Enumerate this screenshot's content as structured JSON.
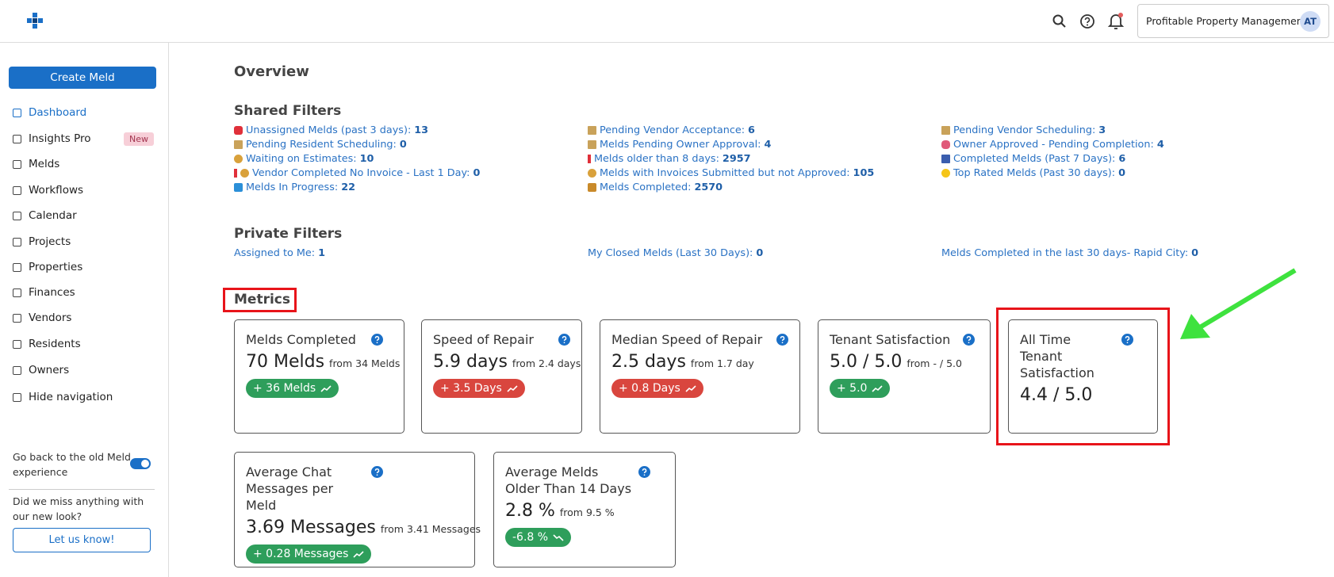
{
  "header": {
    "organization": "Profitable Property Management",
    "avatar": "AT"
  },
  "sidebar": {
    "create_button": "Create Meld",
    "nav": [
      {
        "label": "Dashboard"
      },
      {
        "label": "Insights Pro",
        "badge": "New"
      },
      {
        "label": "Melds"
      },
      {
        "label": "Workflows"
      },
      {
        "label": "Calendar"
      },
      {
        "label": "Projects"
      },
      {
        "label": "Properties"
      },
      {
        "label": "Finances"
      },
      {
        "label": "Vendors"
      },
      {
        "label": "Residents"
      },
      {
        "label": "Owners"
      },
      {
        "label": "Hide navigation"
      }
    ],
    "toggle_label": "Go back to the old Meld experience",
    "feedback_text": "Did we miss anything with our new look?",
    "feedback_button": "Let us know!"
  },
  "main": {
    "title": "Overview",
    "shared_filters": {
      "title": "Shared Filters",
      "columns": [
        [
          {
            "label": "Unassigned Melds (past 3 days):",
            "count": 13
          },
          {
            "label": "Pending Resident Scheduling:",
            "count": 0
          },
          {
            "label": "Waiting on Estimates:",
            "count": 10
          },
          {
            "label": "Vendor Completed No Invoice - Last 1 Day:",
            "count": 0
          },
          {
            "label": "Melds In Progress:",
            "count": 22
          }
        ],
        [
          {
            "label": "Pending Vendor Acceptance:",
            "count": 6
          },
          {
            "label": "Melds Pending Owner Approval:",
            "count": 4
          },
          {
            "label": "Melds older than 8 days:",
            "count": 2957
          },
          {
            "label": "Melds with Invoices Submitted but not Approved:",
            "count": 105
          },
          {
            "label": "Melds Completed:",
            "count": 2570
          }
        ],
        [
          {
            "label": "Pending Vendor Scheduling:",
            "count": 3
          },
          {
            "label": "Owner Approved - Pending Completion:",
            "count": 4
          },
          {
            "label": "Completed Melds (Past 7 Days):",
            "count": 6
          },
          {
            "label": "Top Rated Melds (Past 30 days):",
            "count": 0
          }
        ]
      ]
    },
    "private_filters": {
      "title": "Private Filters",
      "items": [
        {
          "label": "Assigned to Me:",
          "count": 1
        },
        {
          "label": "My Closed Melds (Last 30 Days):",
          "count": 0
        },
        {
          "label": "Melds Completed in the last 30 days- Rapid City:",
          "count": 0
        }
      ]
    },
    "metrics": {
      "title": "Metrics",
      "cards": [
        {
          "title": "Melds Completed",
          "value": "70 Melds",
          "from": "from 34 Melds",
          "change": "+ 36 Melds",
          "color": "#2e9e5b"
        },
        {
          "title": "Speed of Repair",
          "value": "5.9 days",
          "from": "from 2.4 days",
          "change": "+ 3.5 Days",
          "color": "#d9463e"
        },
        {
          "title": "Median Speed of Repair",
          "value": "2.5 days",
          "from": "from 1.7 day",
          "change": "+ 0.8 Days",
          "color": "#d9463e"
        },
        {
          "title": "Tenant Satisfaction",
          "value": "5.0 / 5.0",
          "from": "from - / 5.0",
          "change": "+ 5.0",
          "color": "#2e9e5b"
        },
        {
          "title": "All Time Tenant Satisfaction",
          "value": "4.4 / 5.0"
        },
        {
          "title": "Average Chat Messages per Meld",
          "value": "3.69 Messages",
          "from": "from 3.41 Messages",
          "change": "+ 0.28 Messages",
          "color": "#2e9e5b"
        },
        {
          "title": "Average Melds Older Than 14 Days",
          "value": "2.8 %",
          "from": "from 9.5 %",
          "change": "-6.8 %",
          "color": "#2e9e5b"
        }
      ]
    }
  }
}
